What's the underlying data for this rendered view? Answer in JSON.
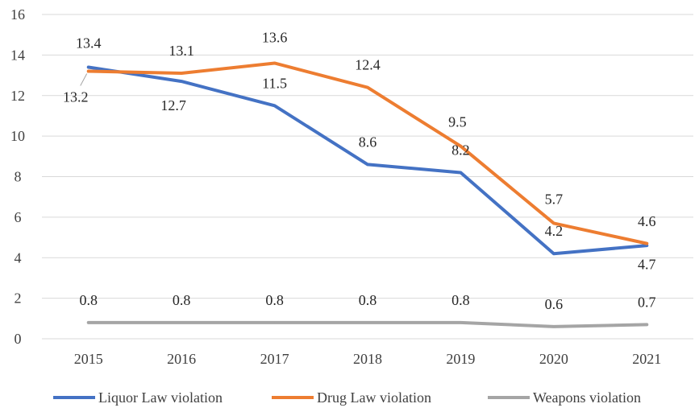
{
  "chart_data": {
    "type": "line",
    "title": "",
    "xlabel": "",
    "ylabel": "",
    "categories": [
      "2015",
      "2016",
      "2017",
      "2018",
      "2019",
      "2020",
      "2021"
    ],
    "ylim": [
      0,
      16
    ],
    "yticks": [
      0,
      2,
      4,
      6,
      8,
      10,
      12,
      14,
      16
    ],
    "grid": true,
    "legend_position": "bottom",
    "series": [
      {
        "name": "Liquor Law violation",
        "color": "#4472c4",
        "values": [
          13.4,
          12.7,
          11.5,
          8.6,
          8.2,
          4.2,
          4.6
        ],
        "labels": [
          "13.4",
          "12.7",
          "11.5",
          "8.6",
          "8.2",
          "4.2",
          "4.6"
        ]
      },
      {
        "name": "Drug Law violation",
        "color": "#ed7d31",
        "values": [
          13.2,
          13.1,
          13.6,
          12.4,
          9.5,
          5.7,
          4.7
        ],
        "labels": [
          "13.2",
          "13.1",
          "13.6",
          "12.4",
          "9.5",
          "5.7",
          "4.7"
        ]
      },
      {
        "name": "Weapons violation",
        "color": "#a5a5a5",
        "values": [
          0.8,
          0.8,
          0.8,
          0.8,
          0.8,
          0.6,
          0.7
        ],
        "labels": [
          "0.8",
          "0.8",
          "0.8",
          "0.8",
          "0.8",
          "0.6",
          "0.7"
        ]
      }
    ]
  }
}
